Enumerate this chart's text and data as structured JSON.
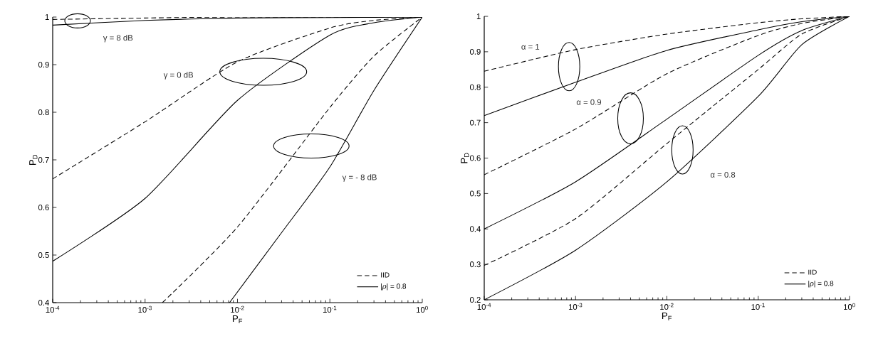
{
  "chart_data": [
    {
      "type": "line",
      "xlabel": "P$_{F}$",
      "ylabel": "P$_{D}$",
      "log": "x",
      "legend": "bottom right",
      "xlim": [
        0.0001,
        1
      ],
      "ylim": [
        0.4,
        1
      ],
      "xticks": [
        {
          "value": 0.0001,
          "label": "10$^{-4}$"
        },
        {
          "value": 0.001,
          "label": "10$^{-3}$"
        },
        {
          "value": 0.01,
          "label": "10$^{-2}$"
        },
        {
          "value": 0.1,
          "label": "10$^{-1}$"
        },
        {
          "value": 1,
          "label": "10$^{0}$"
        }
      ],
      "yticks": [
        0.4,
        0.5,
        0.6,
        0.7,
        0.8,
        0.9,
        1
      ],
      "annotations": [
        "γ = 8 dB",
        "γ = 0 dB",
        "γ = - 8 dB"
      ],
      "series": [
        {
          "name": "IID",
          "color": "#000000",
          "line_style": "dashed",
          "x": [
            0.0001,
            0.001,
            0.01,
            1
          ],
          "values": [
            0.995,
            0.998,
            1,
            1
          ]
        },
        {
          "name": "|*ρ*| = 0.8",
          "color": "#000000",
          "line_style": "solid",
          "x": [
            0.0001,
            0.001,
            0.01,
            0.1,
            1
          ],
          "values": [
            0.983,
            0.993,
            0.998,
            0.999,
            1
          ]
        },
        {
          "color": "#000000",
          "line_style": "dashed",
          "x": [
            0.0001,
            0.001,
            0.01,
            0.1,
            0.3,
            1
          ],
          "values": [
            0.66,
            0.78,
            0.906,
            0.977,
            0.993,
            1
          ]
        },
        {
          "color": "#000000",
          "line_style": "solid",
          "x": [
            0.0001,
            0.001,
            0.01,
            0.1,
            0.3,
            1
          ],
          "values": [
            0.487,
            0.619,
            0.825,
            0.962,
            0.988,
            1
          ]
        },
        {
          "color": "#000000",
          "line_style": "dashed",
          "x": [
            0.00154,
            0.01,
            0.1,
            0.3,
            1
          ],
          "values": [
            0.4,
            0.559,
            0.81,
            0.918,
            1
          ]
        },
        {
          "color": "#000000",
          "line_style": "solid",
          "x": [
            0.0082,
            0.03,
            0.1,
            0.3,
            1
          ],
          "values": [
            0.4,
            0.547,
            0.685,
            0.846,
            1
          ]
        }
      ]
    },
    {
      "type": "line",
      "xlabel": "P$_{F}$",
      "ylabel": "P$_{D}$",
      "log": "x",
      "legend": "bottom right",
      "xlim": [
        0.0001,
        1
      ],
      "ylim": [
        0.2,
        1
      ],
      "xticks": [
        {
          "value": 0.0001,
          "label": "10$^{-4}$"
        },
        {
          "value": 0.001,
          "label": "10$^{-3}$"
        },
        {
          "value": 0.01,
          "label": "10$^{-2}$"
        },
        {
          "value": 0.1,
          "label": "10$^{-1}$"
        },
        {
          "value": 1,
          "label": "10$^{0}$"
        }
      ],
      "yticks": [
        0.2,
        0.3,
        0.4,
        0.5,
        0.6,
        0.7,
        0.8,
        0.9,
        1
      ],
      "annotations": [
        "α = 1",
        "α = 0.9",
        "α = 0.8"
      ],
      "series": [
        {
          "name": "IID",
          "color": "#000000",
          "line_style": "dashed",
          "x": [
            0.0001,
            0.001,
            0.01,
            0.1,
            0.3,
            1
          ],
          "values": [
            0.845,
            0.906,
            0.95,
            0.982,
            0.993,
            1
          ]
        },
        {
          "name": "|*ρ*| = 0.8",
          "color": "#000000",
          "line_style": "solid",
          "x": [
            0.0001,
            0.001,
            0.01,
            0.1,
            0.3,
            1
          ],
          "values": [
            0.72,
            0.814,
            0.904,
            0.962,
            0.985,
            1
          ]
        },
        {
          "color": "#000000",
          "line_style": "dashed",
          "x": [
            0.0001,
            0.001,
            0.01,
            0.1,
            0.3,
            1
          ],
          "values": [
            0.553,
            0.682,
            0.838,
            0.946,
            0.98,
            1
          ]
        },
        {
          "color": "#000000",
          "line_style": "solid",
          "x": [
            0.0001,
            0.001,
            0.01,
            0.1,
            0.3,
            1
          ],
          "values": [
            0.4,
            0.533,
            0.71,
            0.89,
            0.96,
            1
          ]
        },
        {
          "color": "#000000",
          "line_style": "dashed",
          "x": [
            0.0001,
            0.001,
            0.01,
            0.1,
            0.3,
            1
          ],
          "values": [
            0.297,
            0.429,
            0.641,
            0.85,
            0.95,
            1
          ]
        },
        {
          "color": "#000000",
          "line_style": "solid",
          "x": [
            0.0001,
            0.001,
            0.01,
            0.1,
            0.3,
            1
          ],
          "values": [
            0.2,
            0.34,
            0.533,
            0.774,
            0.92,
            1
          ]
        }
      ]
    }
  ]
}
